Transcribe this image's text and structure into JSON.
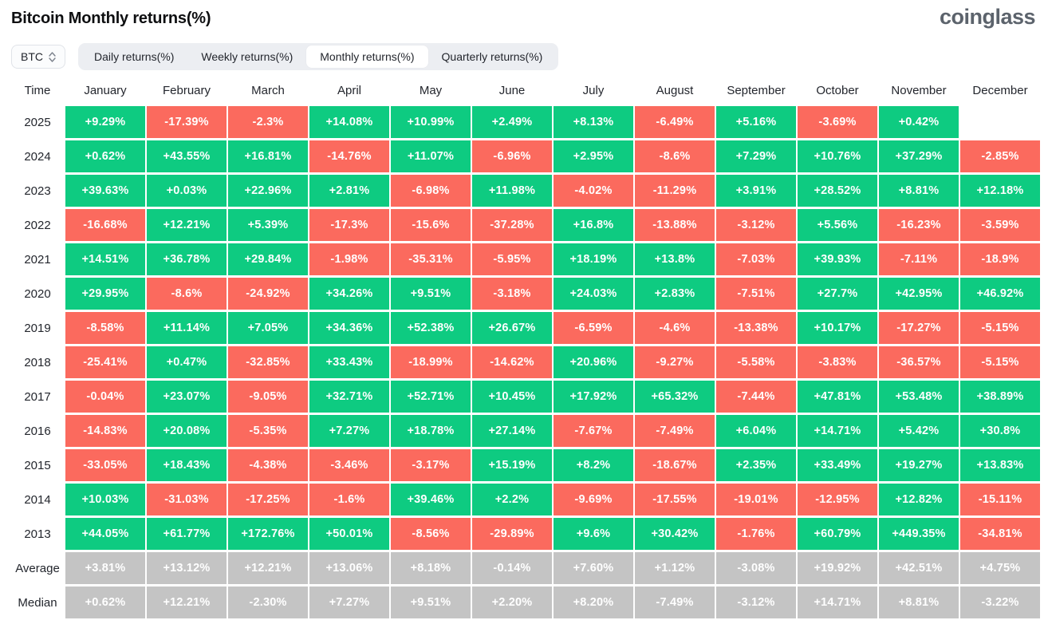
{
  "header": {
    "title": "Bitcoin Monthly returns(%)",
    "logo": "coinglass"
  },
  "controls": {
    "symbol_select": {
      "value": "BTC",
      "icon": "up-down-chevron-icon"
    },
    "tabs": [
      {
        "label": "Daily returns(%)",
        "active": false
      },
      {
        "label": "Weekly returns(%)",
        "active": false
      },
      {
        "label": "Monthly returns(%)",
        "active": true
      },
      {
        "label": "Quarterly returns(%)",
        "active": false
      }
    ]
  },
  "colors": {
    "positive": "#0ECB81",
    "negative": "#FB6A5E",
    "summary": "#C4C4C4"
  },
  "table": {
    "time_header": "Time",
    "months": [
      "January",
      "February",
      "March",
      "April",
      "May",
      "June",
      "July",
      "August",
      "September",
      "October",
      "November",
      "December"
    ],
    "rows": [
      {
        "label": "2025",
        "summary": false,
        "values": [
          "+9.29%",
          "-17.39%",
          "-2.3%",
          "+14.08%",
          "+10.99%",
          "+2.49%",
          "+8.13%",
          "-6.49%",
          "+5.16%",
          "-3.69%",
          "+0.42%",
          ""
        ]
      },
      {
        "label": "2024",
        "summary": false,
        "values": [
          "+0.62%",
          "+43.55%",
          "+16.81%",
          "-14.76%",
          "+11.07%",
          "-6.96%",
          "+2.95%",
          "-8.6%",
          "+7.29%",
          "+10.76%",
          "+37.29%",
          "-2.85%"
        ]
      },
      {
        "label": "2023",
        "summary": false,
        "values": [
          "+39.63%",
          "+0.03%",
          "+22.96%",
          "+2.81%",
          "-6.98%",
          "+11.98%",
          "-4.02%",
          "-11.29%",
          "+3.91%",
          "+28.52%",
          "+8.81%",
          "+12.18%"
        ]
      },
      {
        "label": "2022",
        "summary": false,
        "values": [
          "-16.68%",
          "+12.21%",
          "+5.39%",
          "-17.3%",
          "-15.6%",
          "-37.28%",
          "+16.8%",
          "-13.88%",
          "-3.12%",
          "+5.56%",
          "-16.23%",
          "-3.59%"
        ]
      },
      {
        "label": "2021",
        "summary": false,
        "values": [
          "+14.51%",
          "+36.78%",
          "+29.84%",
          "-1.98%",
          "-35.31%",
          "-5.95%",
          "+18.19%",
          "+13.8%",
          "-7.03%",
          "+39.93%",
          "-7.11%",
          "-18.9%"
        ]
      },
      {
        "label": "2020",
        "summary": false,
        "values": [
          "+29.95%",
          "-8.6%",
          "-24.92%",
          "+34.26%",
          "+9.51%",
          "-3.18%",
          "+24.03%",
          "+2.83%",
          "-7.51%",
          "+27.7%",
          "+42.95%",
          "+46.92%"
        ]
      },
      {
        "label": "2019",
        "summary": false,
        "values": [
          "-8.58%",
          "+11.14%",
          "+7.05%",
          "+34.36%",
          "+52.38%",
          "+26.67%",
          "-6.59%",
          "-4.6%",
          "-13.38%",
          "+10.17%",
          "-17.27%",
          "-5.15%"
        ]
      },
      {
        "label": "2018",
        "summary": false,
        "values": [
          "-25.41%",
          "+0.47%",
          "-32.85%",
          "+33.43%",
          "-18.99%",
          "-14.62%",
          "+20.96%",
          "-9.27%",
          "-5.58%",
          "-3.83%",
          "-36.57%",
          "-5.15%"
        ]
      },
      {
        "label": "2017",
        "summary": false,
        "values": [
          "-0.04%",
          "+23.07%",
          "-9.05%",
          "+32.71%",
          "+52.71%",
          "+10.45%",
          "+17.92%",
          "+65.32%",
          "-7.44%",
          "+47.81%",
          "+53.48%",
          "+38.89%"
        ]
      },
      {
        "label": "2016",
        "summary": false,
        "values": [
          "-14.83%",
          "+20.08%",
          "-5.35%",
          "+7.27%",
          "+18.78%",
          "+27.14%",
          "-7.67%",
          "-7.49%",
          "+6.04%",
          "+14.71%",
          "+5.42%",
          "+30.8%"
        ]
      },
      {
        "label": "2015",
        "summary": false,
        "values": [
          "-33.05%",
          "+18.43%",
          "-4.38%",
          "-3.46%",
          "-3.17%",
          "+15.19%",
          "+8.2%",
          "-18.67%",
          "+2.35%",
          "+33.49%",
          "+19.27%",
          "+13.83%"
        ]
      },
      {
        "label": "2014",
        "summary": false,
        "values": [
          "+10.03%",
          "-31.03%",
          "-17.25%",
          "-1.6%",
          "+39.46%",
          "+2.2%",
          "-9.69%",
          "-17.55%",
          "-19.01%",
          "-12.95%",
          "+12.82%",
          "-15.11%"
        ]
      },
      {
        "label": "2013",
        "summary": false,
        "values": [
          "+44.05%",
          "+61.77%",
          "+172.76%",
          "+50.01%",
          "-8.56%",
          "-29.89%",
          "+9.6%",
          "+30.42%",
          "-1.76%",
          "+60.79%",
          "+449.35%",
          "-34.81%"
        ]
      },
      {
        "label": "Average",
        "summary": true,
        "values": [
          "+3.81%",
          "+13.12%",
          "+12.21%",
          "+13.06%",
          "+8.18%",
          "-0.14%",
          "+7.60%",
          "+1.12%",
          "-3.08%",
          "+19.92%",
          "+42.51%",
          "+4.75%"
        ]
      },
      {
        "label": "Median",
        "summary": true,
        "values": [
          "+0.62%",
          "+12.21%",
          "-2.30%",
          "+7.27%",
          "+9.51%",
          "+2.20%",
          "+8.20%",
          "-7.49%",
          "-3.12%",
          "+14.71%",
          "+8.81%",
          "-3.22%"
        ]
      }
    ]
  },
  "chart_data": {
    "type": "heatmap",
    "title": "Bitcoin Monthly returns(%)",
    "value_unit": "%",
    "x_labels": [
      "January",
      "February",
      "March",
      "April",
      "May",
      "June",
      "July",
      "August",
      "September",
      "October",
      "November",
      "December"
    ],
    "y_labels": [
      "2025",
      "2024",
      "2023",
      "2022",
      "2021",
      "2020",
      "2019",
      "2018",
      "2017",
      "2016",
      "2015",
      "2014",
      "2013",
      "Average",
      "Median"
    ],
    "legend_position": "none",
    "series": [
      {
        "name": "2025",
        "values": [
          9.29,
          -17.39,
          -2.3,
          14.08,
          10.99,
          2.49,
          8.13,
          -6.49,
          5.16,
          -3.69,
          0.42,
          null
        ]
      },
      {
        "name": "2024",
        "values": [
          0.62,
          43.55,
          16.81,
          -14.76,
          11.07,
          -6.96,
          2.95,
          -8.6,
          7.29,
          10.76,
          37.29,
          -2.85
        ]
      },
      {
        "name": "2023",
        "values": [
          39.63,
          0.03,
          22.96,
          2.81,
          -6.98,
          11.98,
          -4.02,
          -11.29,
          3.91,
          28.52,
          8.81,
          12.18
        ]
      },
      {
        "name": "2022",
        "values": [
          -16.68,
          12.21,
          5.39,
          -17.3,
          -15.6,
          -37.28,
          16.8,
          -13.88,
          -3.12,
          5.56,
          -16.23,
          -3.59
        ]
      },
      {
        "name": "2021",
        "values": [
          14.51,
          36.78,
          29.84,
          -1.98,
          -35.31,
          -5.95,
          18.19,
          13.8,
          -7.03,
          39.93,
          -7.11,
          -18.9
        ]
      },
      {
        "name": "2020",
        "values": [
          29.95,
          -8.6,
          -24.92,
          34.26,
          9.51,
          -3.18,
          24.03,
          2.83,
          -7.51,
          27.7,
          42.95,
          46.92
        ]
      },
      {
        "name": "2019",
        "values": [
          -8.58,
          11.14,
          7.05,
          34.36,
          52.38,
          26.67,
          -6.59,
          -4.6,
          -13.38,
          10.17,
          -17.27,
          -5.15
        ]
      },
      {
        "name": "2018",
        "values": [
          -25.41,
          0.47,
          -32.85,
          33.43,
          -18.99,
          -14.62,
          20.96,
          -9.27,
          -5.58,
          -3.83,
          -36.57,
          -5.15
        ]
      },
      {
        "name": "2017",
        "values": [
          -0.04,
          23.07,
          -9.05,
          32.71,
          52.71,
          10.45,
          17.92,
          65.32,
          -7.44,
          47.81,
          53.48,
          38.89
        ]
      },
      {
        "name": "2016",
        "values": [
          -14.83,
          20.08,
          -5.35,
          7.27,
          18.78,
          27.14,
          -7.67,
          -7.49,
          6.04,
          14.71,
          5.42,
          30.8
        ]
      },
      {
        "name": "2015",
        "values": [
          -33.05,
          18.43,
          -4.38,
          -3.46,
          -3.17,
          15.19,
          8.2,
          -18.67,
          2.35,
          33.49,
          19.27,
          13.83
        ]
      },
      {
        "name": "2014",
        "values": [
          10.03,
          -31.03,
          -17.25,
          -1.6,
          39.46,
          2.2,
          -9.69,
          -17.55,
          -19.01,
          -12.95,
          12.82,
          -15.11
        ]
      },
      {
        "name": "2013",
        "values": [
          44.05,
          61.77,
          172.76,
          50.01,
          -8.56,
          -29.89,
          9.6,
          30.42,
          -1.76,
          60.79,
          449.35,
          -34.81
        ]
      },
      {
        "name": "Average",
        "values": [
          3.81,
          13.12,
          12.21,
          13.06,
          8.18,
          -0.14,
          7.6,
          1.12,
          -3.08,
          19.92,
          42.51,
          4.75
        ]
      },
      {
        "name": "Median",
        "values": [
          0.62,
          12.21,
          -2.3,
          7.27,
          9.51,
          2.2,
          8.2,
          -7.49,
          -3.12,
          14.71,
          8.81,
          -3.22
        ]
      }
    ]
  }
}
